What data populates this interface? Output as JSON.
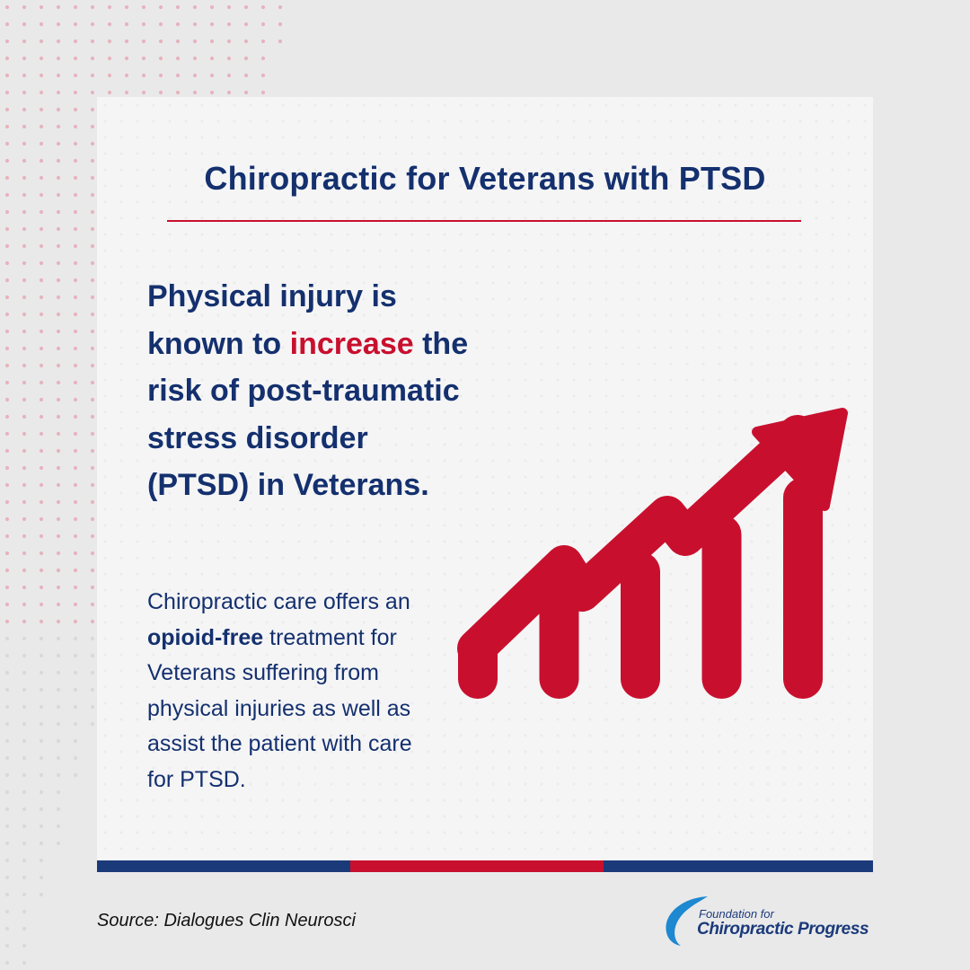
{
  "title": "Chiropractic for Veterans with PTSD",
  "headline": {
    "before": "Physical injury is known to ",
    "accent": "increase",
    "after": " the risk of post-traumatic stress disorder (PTSD) in Veterans."
  },
  "body": {
    "before": "Chiropractic care offers an ",
    "bold": "opioid-free",
    "after": " treatment for Veterans suffering from physical injuries as well as assist the patient with care for PTSD."
  },
  "graphic": {
    "icon": "rising-bar-chart-arrow-icon",
    "bar_levels": [
      0.17,
      0.4,
      0.6,
      0.8,
      1.0
    ]
  },
  "source": "Source: Dialogues Clin Neurosci",
  "logo": {
    "line1": "Foundation for",
    "line2": "Chiropractic Progress"
  },
  "colors": {
    "navy": "#14306e",
    "red": "#c8102e",
    "background": "#e9e9ea",
    "card": "#f5f5f6"
  }
}
